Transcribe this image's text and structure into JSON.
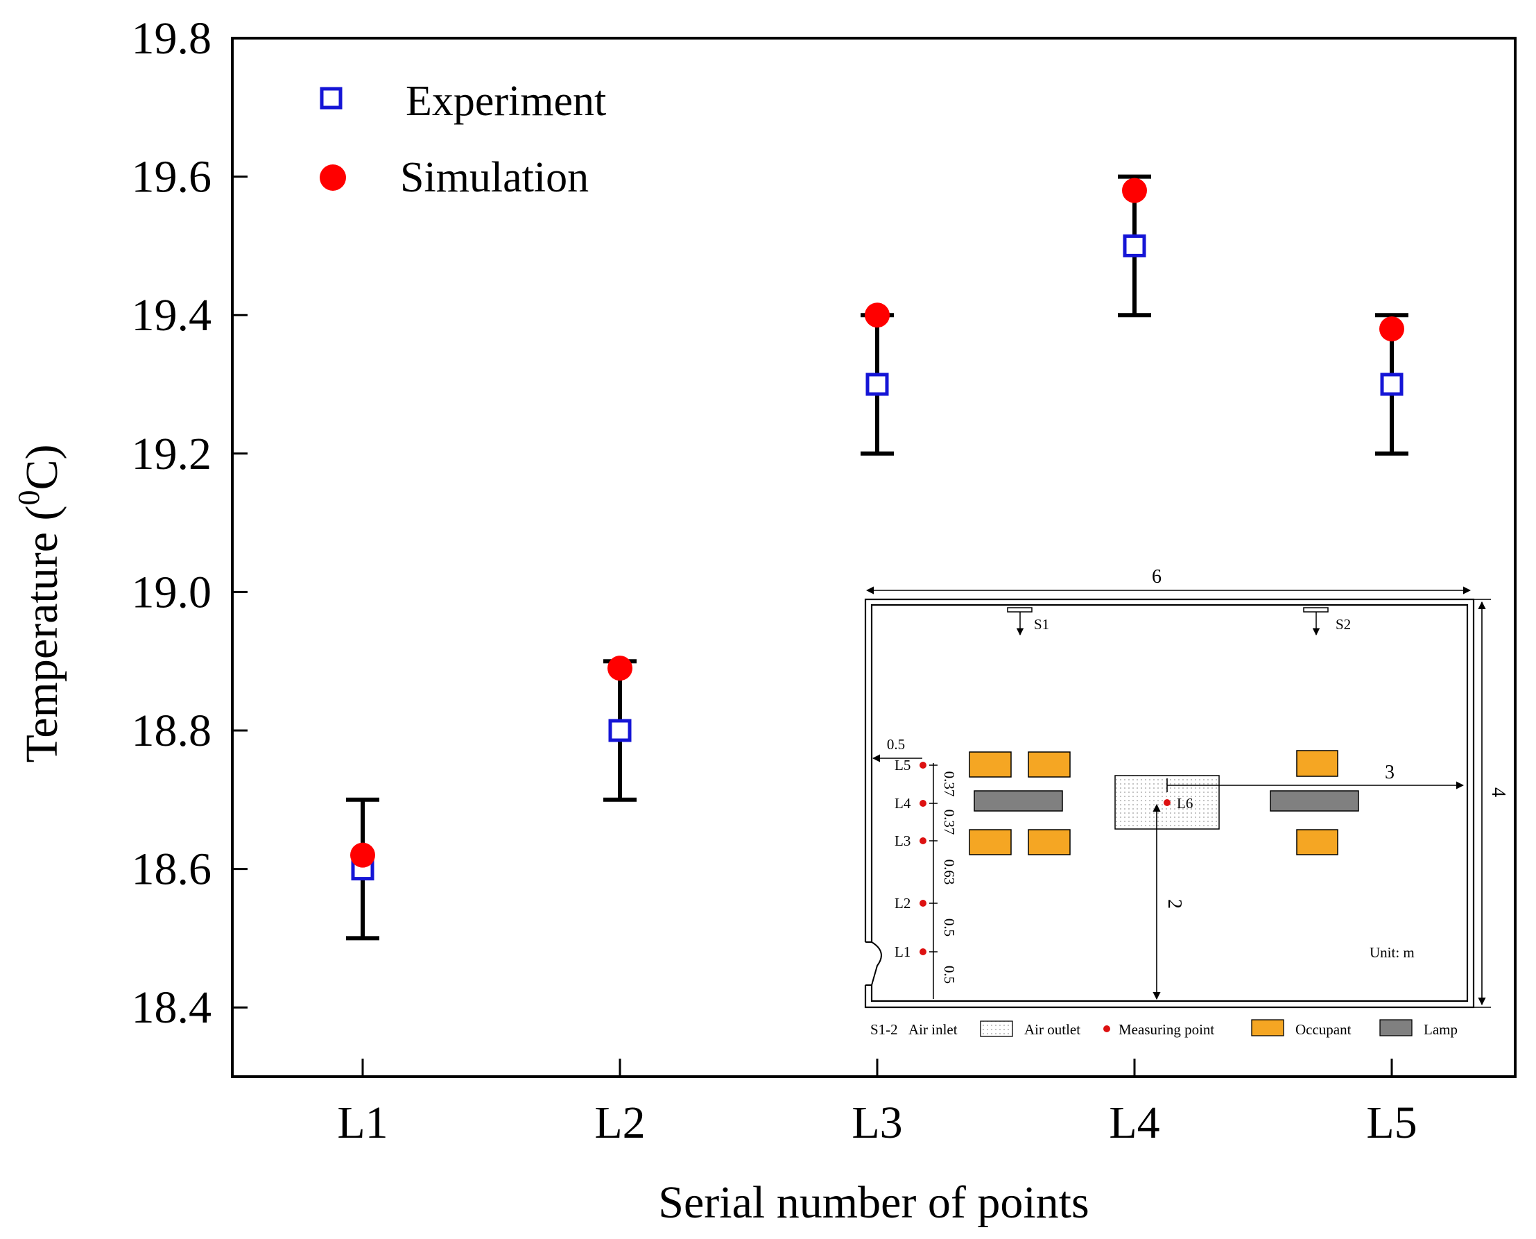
{
  "chart_data": {
    "type": "scatter",
    "xlabel": "Serial number of points",
    "ylabel_main": "Temperature (",
    "ylabel_sup": "0",
    "ylabel_tail": "C)",
    "categories": [
      "L1",
      "L2",
      "L3",
      "L4",
      "L5"
    ],
    "ylim": [
      18.3,
      19.8
    ],
    "yticks": [
      "18.4",
      "18.6",
      "18.8",
      "19.0",
      "19.2",
      "19.4",
      "19.6",
      "19.8"
    ],
    "grid": false,
    "legend_position": "top-left",
    "series": [
      {
        "name": "Experiment",
        "marker": "open-square",
        "color": "#1515d6",
        "values": [
          18.6,
          18.8,
          19.3,
          19.5,
          19.3
        ],
        "error_low": [
          18.5,
          18.7,
          19.2,
          19.4,
          19.2
        ],
        "error_high": [
          18.7,
          18.9,
          19.4,
          19.6,
          19.4
        ]
      },
      {
        "name": "Simulation",
        "marker": "filled-circle",
        "color": "#ff0000",
        "values": [
          18.62,
          18.89,
          19.4,
          19.58,
          19.38
        ]
      }
    ]
  },
  "inset": {
    "dim_width": "6",
    "dim_height": "4",
    "dim_three": "3",
    "dim_two": "2",
    "dim_half": "0.5",
    "inlet_s1": "S1",
    "inlet_s2": "S2",
    "point_l6": "L6",
    "points": [
      "L5",
      "L4",
      "L3",
      "L2",
      "L1"
    ],
    "spacings": [
      "0.37",
      "0.37",
      "0.63",
      "0.5",
      "0.5"
    ],
    "unit_label": "Unit: m",
    "legend": {
      "inlet_code": "S1-2",
      "inlet": "Air inlet",
      "outlet": "Air outlet",
      "measuring": "Measuring point",
      "occupant": "Occupant",
      "lamp": "Lamp"
    },
    "colors": {
      "occupant": "#f5a623",
      "lamp": "#808080",
      "point": "#dd1111"
    }
  }
}
